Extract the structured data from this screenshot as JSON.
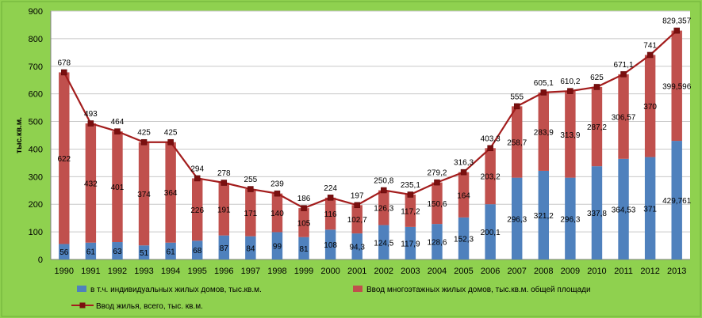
{
  "chart_data": {
    "type": "bar",
    "stacked": true,
    "categories": [
      "1990",
      "1991",
      "1992",
      "1993",
      "1994",
      "1995",
      "1996",
      "1997",
      "1998",
      "1999",
      "2000",
      "2001",
      "2002",
      "2003",
      "2004",
      "2005",
      "2006",
      "2007",
      "2008",
      "2009",
      "2010",
      "2011",
      "2012",
      "2013"
    ],
    "ylabel": "тыс.кв.м.",
    "ylim": [
      0,
      900
    ],
    "yticks": [
      0,
      100,
      200,
      300,
      400,
      500,
      600,
      700,
      800,
      900
    ],
    "grid": true,
    "legend_position": "bottom",
    "series": [
      {
        "name": "в т.ч. индивидуальных жилых домов, тыс.кв.м.",
        "kind": "bar",
        "color": "#4f81bd",
        "values": [
          56,
          61,
          63,
          51,
          61,
          68,
          87,
          84,
          99,
          81,
          108,
          94.3,
          124.5,
          117.9,
          128.6,
          152.3,
          200.1,
          296.3,
          321.2,
          296.3,
          337.8,
          364.53,
          371,
          429.761
        ],
        "labels": [
          "56",
          "61",
          "63",
          "51",
          "61",
          "68",
          "87",
          "84",
          "99",
          "81",
          "108",
          "94,3",
          "124,5",
          "117,9",
          "128,6",
          "152,3",
          "200,1",
          "296,3",
          "321,2",
          "296,3",
          "337,8",
          "364,53",
          "371",
          "429,761"
        ]
      },
      {
        "name": "Ввод многоэтажных жилых домов, тыс.кв.м. общей площади",
        "kind": "bar",
        "color": "#c0504d",
        "values": [
          622,
          432,
          401,
          374,
          364,
          226,
          191,
          171,
          140,
          105,
          116,
          102.7,
          126.3,
          117.2,
          150.6,
          164,
          203.2,
          258.7,
          283.9,
          313.9,
          287.2,
          306.57,
          370,
          399.596
        ],
        "labels": [
          "622",
          "432",
          "401",
          "374",
          "364",
          "226",
          "191",
          "171",
          "140",
          "105",
          "116",
          "102,7",
          "126,3",
          "117,2",
          "150,6",
          "164",
          "203,2",
          "258,7",
          "283,9",
          "313,9",
          "287,2",
          "306,57",
          "370",
          "399,596"
        ]
      },
      {
        "name": "Ввод жилья,  всего, тыс. кв.м.",
        "kind": "line",
        "color": "#a31d1d",
        "values": [
          678,
          493,
          464,
          425,
          425,
          294,
          278,
          255,
          239,
          186,
          224,
          197,
          250.8,
          235.1,
          279.2,
          316.3,
          403.3,
          555,
          605.1,
          610.2,
          625,
          671.1,
          741,
          829.357
        ],
        "labels": [
          "678",
          "493",
          "464",
          "425",
          "425",
          "294",
          "278",
          "255",
          "239",
          "186",
          "224",
          "197",
          "250,8",
          "235,1",
          "279,2",
          "316,3",
          "403,3",
          "555",
          "605,1",
          "610,2",
          "625",
          "671,1",
          "741",
          "829,357"
        ]
      }
    ]
  }
}
